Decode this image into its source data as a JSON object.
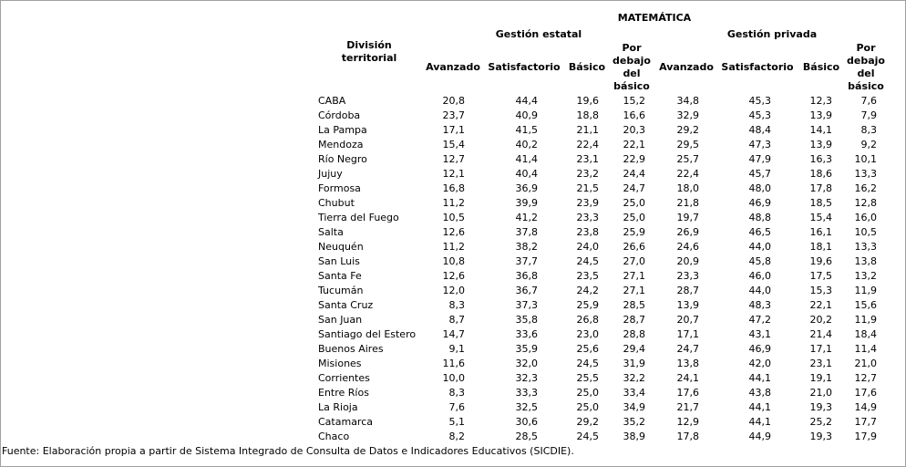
{
  "table": {
    "subject_header": "MATEMÁTICA",
    "row_header": "División territorial",
    "group_headers": [
      "Gestión estatal",
      "Gestión privada"
    ],
    "column_headers": [
      "Avanzado",
      "Satisfactorio",
      "Básico",
      "Por debajo del básico",
      "Avanzado",
      "Satisfactorio",
      "Básico",
      "Por debajo del básico"
    ],
    "rows": [
      {
        "name": "CABA",
        "values": [
          "20,8",
          "44,4",
          "19,6",
          "15,2",
          "34,8",
          "45,3",
          "12,3",
          "7,6"
        ]
      },
      {
        "name": "Córdoba",
        "values": [
          "23,7",
          "40,9",
          "18,8",
          "16,6",
          "32,9",
          "45,3",
          "13,9",
          "7,9"
        ]
      },
      {
        "name": "La Pampa",
        "values": [
          "17,1",
          "41,5",
          "21,1",
          "20,3",
          "29,2",
          "48,4",
          "14,1",
          "8,3"
        ]
      },
      {
        "name": "Mendoza",
        "values": [
          "15,4",
          "40,2",
          "22,4",
          "22,1",
          "29,5",
          "47,3",
          "13,9",
          "9,2"
        ]
      },
      {
        "name": "Río Negro",
        "values": [
          "12,7",
          "41,4",
          "23,1",
          "22,9",
          "25,7",
          "47,9",
          "16,3",
          "10,1"
        ]
      },
      {
        "name": "Jujuy",
        "values": [
          "12,1",
          "40,4",
          "23,2",
          "24,4",
          "22,4",
          "45,7",
          "18,6",
          "13,3"
        ]
      },
      {
        "name": "Formosa",
        "values": [
          "16,8",
          "36,9",
          "21,5",
          "24,7",
          "18,0",
          "48,0",
          "17,8",
          "16,2"
        ]
      },
      {
        "name": "Chubut",
        "values": [
          "11,2",
          "39,9",
          "23,9",
          "25,0",
          "21,8",
          "46,9",
          "18,5",
          "12,8"
        ]
      },
      {
        "name": "Tierra del Fuego",
        "values": [
          "10,5",
          "41,2",
          "23,3",
          "25,0",
          "19,7",
          "48,8",
          "15,4",
          "16,0"
        ]
      },
      {
        "name": "Salta",
        "values": [
          "12,6",
          "37,8",
          "23,8",
          "25,9",
          "26,9",
          "46,5",
          "16,1",
          "10,5"
        ]
      },
      {
        "name": "Neuquén",
        "values": [
          "11,2",
          "38,2",
          "24,0",
          "26,6",
          "24,6",
          "44,0",
          "18,1",
          "13,3"
        ]
      },
      {
        "name": "San Luis",
        "values": [
          "10,8",
          "37,7",
          "24,5",
          "27,0",
          "20,9",
          "45,8",
          "19,6",
          "13,8"
        ]
      },
      {
        "name": "Santa Fe",
        "values": [
          "12,6",
          "36,8",
          "23,5",
          "27,1",
          "23,3",
          "46,0",
          "17,5",
          "13,2"
        ]
      },
      {
        "name": "Tucumán",
        "values": [
          "12,0",
          "36,7",
          "24,2",
          "27,1",
          "28,7",
          "44,0",
          "15,3",
          "11,9"
        ]
      },
      {
        "name": "Santa Cruz",
        "values": [
          "8,3",
          "37,3",
          "25,9",
          "28,5",
          "13,9",
          "48,3",
          "22,1",
          "15,6"
        ]
      },
      {
        "name": "San Juan",
        "values": [
          "8,7",
          "35,8",
          "26,8",
          "28,7",
          "20,7",
          "47,2",
          "20,2",
          "11,9"
        ]
      },
      {
        "name": "Santiago del Estero",
        "values": [
          "14,7",
          "33,6",
          "23,0",
          "28,8",
          "17,1",
          "43,1",
          "21,4",
          "18,4"
        ]
      },
      {
        "name": "Buenos Aires",
        "values": [
          "9,1",
          "35,9",
          "25,6",
          "29,4",
          "24,7",
          "46,9",
          "17,1",
          "11,4"
        ]
      },
      {
        "name": "Misiones",
        "values": [
          "11,6",
          "32,0",
          "24,5",
          "31,9",
          "13,8",
          "42,0",
          "23,1",
          "21,0"
        ]
      },
      {
        "name": "Corrientes",
        "values": [
          "10,0",
          "32,3",
          "25,5",
          "32,2",
          "24,1",
          "44,1",
          "19,1",
          "12,7"
        ]
      },
      {
        "name": "Entre Ríos",
        "values": [
          "8,3",
          "33,3",
          "25,0",
          "33,4",
          "17,6",
          "43,8",
          "21,0",
          "17,6"
        ]
      },
      {
        "name": "La Rioja",
        "values": [
          "7,6",
          "32,5",
          "25,0",
          "34,9",
          "21,7",
          "44,1",
          "19,3",
          "14,9"
        ]
      },
      {
        "name": "Catamarca",
        "values": [
          "5,1",
          "30,6",
          "29,2",
          "35,2",
          "12,9",
          "44,1",
          "25,2",
          "17,7"
        ]
      },
      {
        "name": "Chaco",
        "values": [
          "8,2",
          "28,5",
          "24,5",
          "38,9",
          "17,8",
          "44,9",
          "19,3",
          "17,9"
        ]
      }
    ]
  },
  "footer": "Fuente: Elaboración propia a partir de Sistema Integrado de Consulta de Datos e Indicadores Educativos (SICDIE)."
}
